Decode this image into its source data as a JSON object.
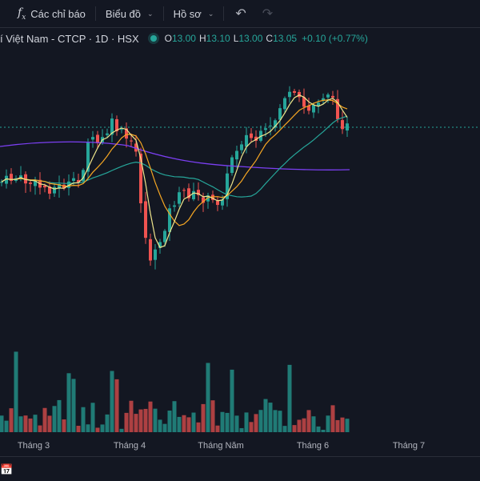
{
  "toolbar": {
    "indicators_label": "Các chỉ báo",
    "chart_type_label": "Biểu đồ",
    "profile_label": "Hồ sơ"
  },
  "legend": {
    "symbol": "í Việt Nam - CTCP · 1D · HSX",
    "open_label": "O",
    "open": "13.00",
    "high_label": "H",
    "high": "13.10",
    "low_label": "L",
    "low": "13.00",
    "close_label": "C",
    "close": "13.05",
    "change": "+0.10 (+0.77%)"
  },
  "time_axis": [
    "Tháng 3",
    "Tháng 4",
    "Tháng Năm",
    "Tháng 6",
    "Tháng 7"
  ],
  "colors": {
    "up": "#26a69a",
    "down": "#ef5350",
    "ma_fast": "#f0e68c",
    "ma_mid": "#f5a623",
    "ma_slow": "#26a69a",
    "ma_long": "#7b3ff2"
  },
  "icons": {
    "indicators": "fx-icon",
    "undo": "undo-icon",
    "redo": "redo-icon",
    "calendar": "calendar-icon"
  }
}
